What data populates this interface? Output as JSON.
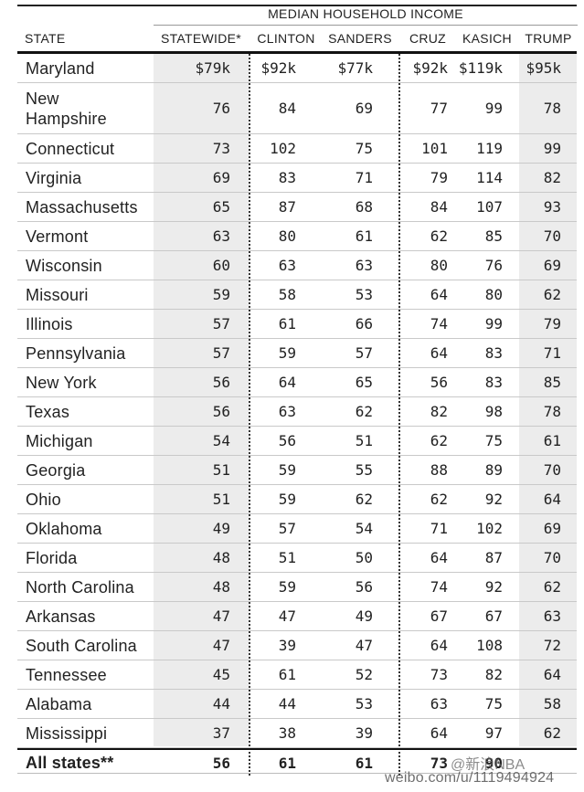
{
  "table": {
    "group_header": "MEDIAN HOUSEHOLD INCOME",
    "columns": {
      "state": "STATE",
      "statewide": "STATEWIDE*",
      "clinton": "CLINTON",
      "sanders": "SANDERS",
      "cruz": "CRUZ",
      "kasich": "KASICH",
      "trump": "TRUMP"
    },
    "rows": [
      {
        "state": "Maryland",
        "statewide": "$79k",
        "clinton": "$92k",
        "sanders": "$77k",
        "cruz": "$92k",
        "kasich": "$119k",
        "trump": "$95k"
      },
      {
        "state": "New Hampshire",
        "statewide": "76",
        "clinton": "84",
        "sanders": "69",
        "cruz": "77",
        "kasich": "99",
        "trump": "78"
      },
      {
        "state": "Connecticut",
        "statewide": "73",
        "clinton": "102",
        "sanders": "75",
        "cruz": "101",
        "kasich": "119",
        "trump": "99"
      },
      {
        "state": "Virginia",
        "statewide": "69",
        "clinton": "83",
        "sanders": "71",
        "cruz": "79",
        "kasich": "114",
        "trump": "82"
      },
      {
        "state": "Massachusetts",
        "statewide": "65",
        "clinton": "87",
        "sanders": "68",
        "cruz": "84",
        "kasich": "107",
        "trump": "93"
      },
      {
        "state": "Vermont",
        "statewide": "63",
        "clinton": "80",
        "sanders": "61",
        "cruz": "62",
        "kasich": "85",
        "trump": "70"
      },
      {
        "state": "Wisconsin",
        "statewide": "60",
        "clinton": "63",
        "sanders": "63",
        "cruz": "80",
        "kasich": "76",
        "trump": "69"
      },
      {
        "state": "Missouri",
        "statewide": "59",
        "clinton": "58",
        "sanders": "53",
        "cruz": "64",
        "kasich": "80",
        "trump": "62"
      },
      {
        "state": "Illinois",
        "statewide": "57",
        "clinton": "61",
        "sanders": "66",
        "cruz": "74",
        "kasich": "99",
        "trump": "79"
      },
      {
        "state": "Pennsylvania",
        "statewide": "57",
        "clinton": "59",
        "sanders": "57",
        "cruz": "64",
        "kasich": "83",
        "trump": "71"
      },
      {
        "state": "New York",
        "statewide": "56",
        "clinton": "64",
        "sanders": "65",
        "cruz": "56",
        "kasich": "83",
        "trump": "85"
      },
      {
        "state": "Texas",
        "statewide": "56",
        "clinton": "63",
        "sanders": "62",
        "cruz": "82",
        "kasich": "98",
        "trump": "78"
      },
      {
        "state": "Michigan",
        "statewide": "54",
        "clinton": "56",
        "sanders": "51",
        "cruz": "62",
        "kasich": "75",
        "trump": "61"
      },
      {
        "state": "Georgia",
        "statewide": "51",
        "clinton": "59",
        "sanders": "55",
        "cruz": "88",
        "kasich": "89",
        "trump": "70"
      },
      {
        "state": "Ohio",
        "statewide": "51",
        "clinton": "59",
        "sanders": "62",
        "cruz": "62",
        "kasich": "92",
        "trump": "64"
      },
      {
        "state": "Oklahoma",
        "statewide": "49",
        "clinton": "57",
        "sanders": "54",
        "cruz": "71",
        "kasich": "102",
        "trump": "69"
      },
      {
        "state": "Florida",
        "statewide": "48",
        "clinton": "51",
        "sanders": "50",
        "cruz": "64",
        "kasich": "87",
        "trump": "70"
      },
      {
        "state": "North Carolina",
        "statewide": "48",
        "clinton": "59",
        "sanders": "56",
        "cruz": "74",
        "kasich": "92",
        "trump": "62"
      },
      {
        "state": "Arkansas",
        "statewide": "47",
        "clinton": "47",
        "sanders": "49",
        "cruz": "67",
        "kasich": "67",
        "trump": "63"
      },
      {
        "state": "South Carolina",
        "statewide": "47",
        "clinton": "39",
        "sanders": "47",
        "cruz": "64",
        "kasich": "108",
        "trump": "72"
      },
      {
        "state": "Tennessee",
        "statewide": "45",
        "clinton": "61",
        "sanders": "52",
        "cruz": "73",
        "kasich": "82",
        "trump": "64"
      },
      {
        "state": "Alabama",
        "statewide": "44",
        "clinton": "44",
        "sanders": "53",
        "cruz": "63",
        "kasich": "75",
        "trump": "58"
      },
      {
        "state": "Mississippi",
        "statewide": "37",
        "clinton": "38",
        "sanders": "39",
        "cruz": "64",
        "kasich": "97",
        "trump": "62"
      }
    ],
    "total_row": {
      "state": "All states**",
      "statewide": "56",
      "clinton": "61",
      "sanders": "61",
      "cruz": "73",
      "kasich": "90",
      "trump": ""
    }
  },
  "watermark": {
    "line1": "@新浪NBA",
    "line2": "weibo.com/u/1119494924"
  }
}
